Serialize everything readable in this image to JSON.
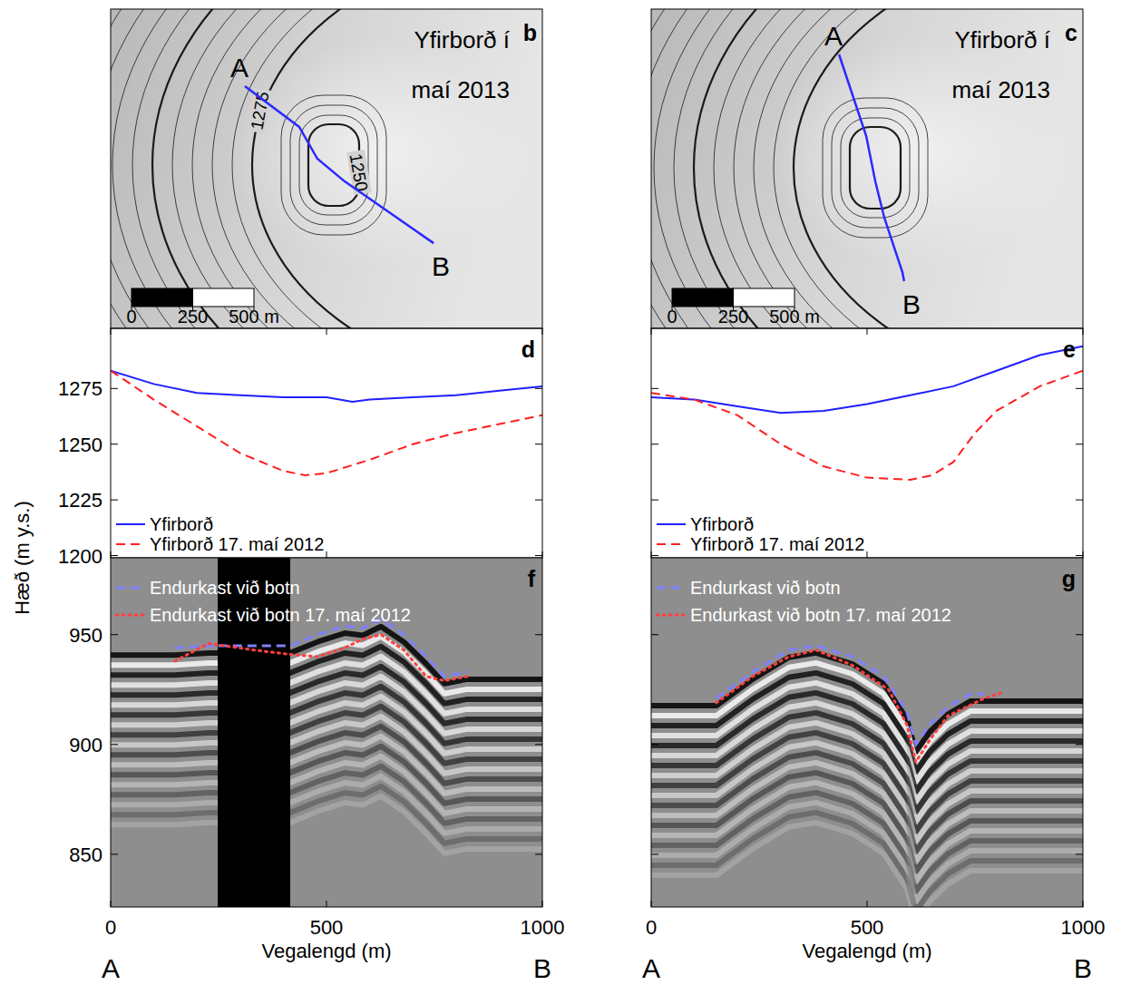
{
  "y_label": "Hæð (m y.s.)",
  "maps": [
    {
      "panel_label": "b",
      "title": "Yfirborð í maí 2013",
      "start_label": "A",
      "end_label": "B",
      "contours": [
        1275,
        1250
      ],
      "scale_ticks": [
        0,
        250,
        {
          "value": 500,
          "label": "500 m"
        }
      ],
      "profile_line": {
        "x": [
          548,
          770,
          844,
          956,
          1319
        ],
        "y": [
          315,
          481,
          611,
          704,
          956
        ]
      }
    },
    {
      "panel_label": "c",
      "title": "Yfirborð í maí 2013",
      "start_label": "A",
      "end_label": "B",
      "scale_ticks": [
        0,
        250,
        {
          "value": 500,
          "label": "500 m"
        }
      ],
      "profile_line": {
        "x": [
          767,
          878,
          915,
          952,
          1026,
          1033
        ],
        "y": [
          185,
          519,
          704,
          852,
          1074,
          1111
        ]
      }
    }
  ],
  "chart_data": [
    {
      "type": "line",
      "panel_label": "d",
      "xlim": [
        0,
        1000
      ],
      "xticks": [
        0,
        500,
        1000
      ],
      "ylim": [
        1199,
        1302
      ],
      "yticks": [
        1200,
        1225,
        1250,
        1275
      ],
      "tick_labels": "y",
      "legend": "lower left",
      "series": [
        {
          "name": "Yfirborð",
          "color": "#1f1fff",
          "line_style": "solid",
          "x": [
            0,
            100,
            200,
            300,
            400,
            500,
            560,
            600,
            700,
            800,
            900,
            1000
          ],
          "values": [
            1283,
            1277,
            1273,
            1272,
            1271,
            1271,
            1269,
            1270,
            1271,
            1272,
            1274,
            1276
          ]
        },
        {
          "name": "Yfirborð 17. maí 2012",
          "color": "#ff1f1f",
          "line_style": "dashed",
          "x": [
            0,
            100,
            200,
            300,
            400,
            450,
            500,
            600,
            700,
            800,
            900,
            1000
          ],
          "values": [
            1283,
            1270,
            1258,
            1246,
            1238,
            1236,
            1237,
            1243,
            1250,
            1255,
            1259,
            1263
          ]
        }
      ]
    },
    {
      "type": "line",
      "panel_label": "e",
      "xlim": [
        0,
        1000
      ],
      "xticks": [
        0,
        500,
        1000
      ],
      "ylim": [
        1199,
        1302
      ],
      "yticks": [
        1200,
        1225,
        1250,
        1275
      ],
      "tick_labels": false,
      "legend": "lower left",
      "series": [
        {
          "name": "Yfirborð",
          "color": "#1f1fff",
          "line_style": "solid",
          "x": [
            0,
            100,
            200,
            300,
            400,
            500,
            600,
            700,
            800,
            900,
            1000
          ],
          "values": [
            1271,
            1270,
            1267,
            1264,
            1265,
            1268,
            1272,
            1276,
            1283,
            1290,
            1294
          ]
        },
        {
          "name": "Yfirborð 17. maí 2012",
          "color": "#ff1f1f",
          "line_style": "dashed",
          "x": [
            0,
            100,
            200,
            300,
            400,
            500,
            600,
            650,
            700,
            750,
            800,
            900,
            1000
          ],
          "values": [
            1273,
            1270,
            1263,
            1250,
            1240,
            1235,
            1234,
            1236,
            1242,
            1255,
            1265,
            1276,
            1283
          ]
        }
      ]
    },
    {
      "type": "radargram",
      "panel_label": "f",
      "xlim": [
        0,
        1000
      ],
      "xticks": [
        0,
        500,
        1000
      ],
      "ylim": [
        826,
        985
      ],
      "yticks": [
        850,
        900,
        950
      ],
      "tick_labels": true,
      "legend": "upper left",
      "x_label": "Vegalengd (m)",
      "x_end_labels": [
        "A",
        "B"
      ],
      "no_data": [
        248,
        416
      ],
      "series": [
        {
          "name": "Endurkast við botn",
          "color": "#8080ff",
          "line_style": "dashed",
          "x": [
            149,
            227,
            332,
            416,
            479,
            542,
            584,
            626,
            679,
            731,
            773,
            826
          ],
          "values": [
            944,
            945,
            945,
            945,
            950,
            954,
            953,
            957,
            950,
            940,
            931,
            933
          ]
        },
        {
          "name": "Endurkast við botn 17. maí 2012",
          "color": "#ff4040",
          "line_style": "dotted",
          "x": [
            149,
            227,
            332,
            416,
            479,
            542,
            584,
            626,
            679,
            731,
            773,
            826
          ],
          "values": [
            938,
            946,
            943,
            941,
            940,
            944,
            948,
            950,
            943,
            931,
            929,
            931
          ]
        }
      ]
    },
    {
      "type": "radargram",
      "panel_label": "g",
      "xlim": [
        0,
        1000
      ],
      "xticks": [
        0,
        500,
        1000
      ],
      "ylim": [
        826,
        985
      ],
      "yticks": [
        850,
        900,
        950
      ],
      "tick_labels": "x",
      "legend": "upper left",
      "x_label": "Vegalengd (m)",
      "x_end_labels": [
        "A",
        "B"
      ],
      "series": [
        {
          "name": "Endurkast við botn",
          "color": "#8080ff",
          "line_style": "dashed",
          "x": [
            151,
            235,
            319,
            382,
            466,
            538,
            592,
            613,
            645,
            687,
            739,
            771
          ],
          "values": [
            921,
            933,
            943,
            945,
            940,
            931,
            915,
            900,
            909,
            917,
            923,
            923
          ]
        },
        {
          "name": "Endurkast við botn 17. maí 2012",
          "color": "#ff4040",
          "line_style": "dotted",
          "x": [
            151,
            235,
            319,
            382,
            466,
            550,
            592,
            613,
            645,
            687,
            771,
            820
          ],
          "values": [
            919,
            931,
            940,
            943,
            936,
            925,
            909,
            892,
            902,
            913,
            921,
            924
          ]
        }
      ]
    }
  ]
}
